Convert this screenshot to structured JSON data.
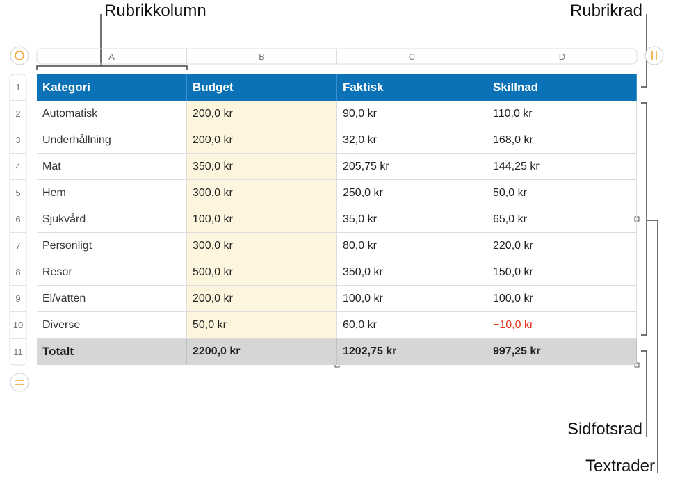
{
  "callouts": {
    "header_column": "Rubrikkolumn",
    "header_row": "Rubrikrad",
    "footer_row": "Sidfotsrad",
    "body_rows": "Textrader"
  },
  "column_letters": [
    "A",
    "B",
    "C",
    "D"
  ],
  "row_numbers": [
    "1",
    "2",
    "3",
    "4",
    "5",
    "6",
    "7",
    "8",
    "9",
    "10",
    "11"
  ],
  "table": {
    "header": [
      "Kategori",
      "Budget",
      "Faktisk",
      "Skillnad"
    ],
    "rows": [
      [
        "Automatisk",
        "200,0 kr",
        "90,0 kr",
        "110,0 kr"
      ],
      [
        "Underhållning",
        "200,0 kr",
        "32,0 kr",
        "168,0 kr"
      ],
      [
        "Mat",
        "350,0 kr",
        "205,75 kr",
        "144,25 kr"
      ],
      [
        "Hem",
        "300,0 kr",
        "250,0 kr",
        "50,0 kr"
      ],
      [
        "Sjukvård",
        "100,0 kr",
        "35,0 kr",
        "65,0 kr"
      ],
      [
        "Personligt",
        "300,0 kr",
        "80,0 kr",
        "220,0 kr"
      ],
      [
        "Resor",
        "500,0 kr",
        "350,0 kr",
        "150,0 kr"
      ],
      [
        "El/vatten",
        "200,0 kr",
        "100,0 kr",
        "100,0 kr"
      ],
      [
        "Diverse",
        "50,0 kr",
        "60,0 kr",
        "−10,0 kr"
      ]
    ],
    "footer": [
      "Totalt",
      "2200,0 kr",
      "1202,75 kr",
      "997,25 kr"
    ]
  }
}
